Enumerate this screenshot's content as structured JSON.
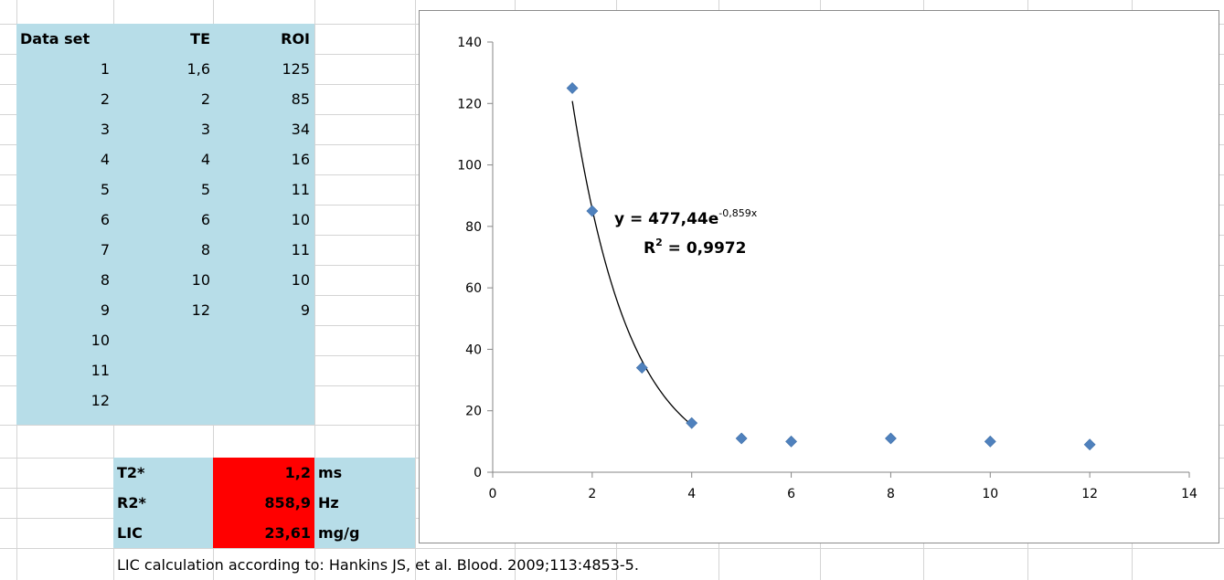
{
  "table": {
    "headers": {
      "dataset": "Data set",
      "te": "TE",
      "roi": "ROI"
    },
    "rows": [
      {
        "dataset": "1",
        "te": "1,6",
        "roi": "125"
      },
      {
        "dataset": "2",
        "te": "2",
        "roi": "85"
      },
      {
        "dataset": "3",
        "te": "3",
        "roi": "34"
      },
      {
        "dataset": "4",
        "te": "4",
        "roi": "16"
      },
      {
        "dataset": "5",
        "te": "5",
        "roi": "11"
      },
      {
        "dataset": "6",
        "te": "6",
        "roi": "10"
      },
      {
        "dataset": "7",
        "te": "8",
        "roi": "11"
      },
      {
        "dataset": "8",
        "te": "10",
        "roi": "10"
      },
      {
        "dataset": "9",
        "te": "12",
        "roi": "9"
      },
      {
        "dataset": "10",
        "te": "",
        "roi": ""
      },
      {
        "dataset": "11",
        "te": "",
        "roi": ""
      },
      {
        "dataset": "12",
        "te": "",
        "roi": ""
      }
    ]
  },
  "results": [
    {
      "label": "T2*",
      "value": "1,2",
      "unit": "ms"
    },
    {
      "label": "R2*",
      "value": "858,9",
      "unit": "Hz"
    },
    {
      "label": "LIC",
      "value": "23,61",
      "unit": "mg/g"
    }
  ],
  "footnote": "LIC calculation according to: Hankins JS, et al. Blood. 2009;113:4853-5.",
  "colors": {
    "data_fill": "#b7dde8",
    "result_fill": "#ff0000",
    "marker": "#4f81bd",
    "trendline": "#000000"
  },
  "chart_data": {
    "type": "scatter",
    "title": "",
    "xlabel": "",
    "ylabel": "",
    "xlim": [
      0,
      14
    ],
    "ylim": [
      0,
      140
    ],
    "x_ticks": [
      0,
      2,
      4,
      6,
      8,
      10,
      12,
      14
    ],
    "y_ticks": [
      0,
      20,
      40,
      60,
      80,
      100,
      120,
      140
    ],
    "grid": false,
    "legend": "none",
    "marker": "diamond",
    "series": [
      {
        "x": [
          1.6,
          2,
          3,
          4,
          5,
          6,
          8,
          10,
          12
        ],
        "y": [
          125,
          85,
          34,
          16,
          11,
          10,
          11,
          10,
          9
        ]
      }
    ],
    "trendline": {
      "type": "exponential",
      "a": 477.44,
      "b": -0.859,
      "x_range": [
        1.6,
        4
      ],
      "equation_prefix": "y = 477,44e",
      "equation_exponent": "-0,859x",
      "r2_prefix": "R",
      "r2_exp": "2",
      "r2_suffix": " = 0,9972"
    }
  }
}
